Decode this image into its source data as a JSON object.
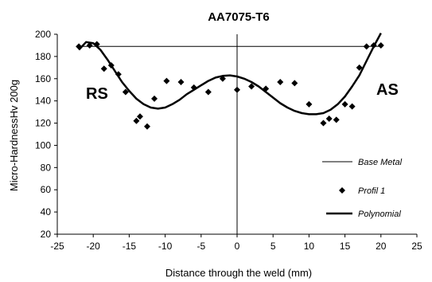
{
  "chart_data": {
    "type": "scatter",
    "title": "AA7075-T6",
    "xlabel": "Distance through the weld (mm)",
    "ylabel": "Micro-HardnessHv 200g",
    "xlim": [
      -25,
      25
    ],
    "ylim": [
      20,
      200
    ],
    "x_ticks": [
      -25,
      -20,
      -15,
      -10,
      -5,
      0,
      5,
      10,
      15,
      20,
      25
    ],
    "y_ticks": [
      20,
      40,
      60,
      80,
      100,
      120,
      140,
      160,
      180,
      200
    ],
    "annotations": [
      "RS",
      "AS"
    ],
    "legend_position": "right",
    "series": [
      {
        "name": "Base Metal",
        "kind": "line",
        "style": "thin",
        "x": [
          -22,
          20
        ],
        "y": [
          189,
          189
        ]
      },
      {
        "name": "Profil 1",
        "kind": "scatter",
        "marker": "diamond",
        "x": [
          -22,
          -20.5,
          -19.5,
          -18.5,
          -17.5,
          -16.5,
          -15.5,
          -14,
          -13.5,
          -12.5,
          -11.5,
          -9.8,
          -7.8,
          -6,
          -4,
          -2,
          0,
          2,
          4,
          6,
          8,
          10,
          12,
          12.8,
          13.8,
          15,
          16,
          17,
          18,
          19,
          20
        ],
        "y": [
          189,
          190,
          191,
          169,
          172,
          164,
          148,
          122,
          126,
          117,
          142,
          158,
          157,
          152,
          148,
          160,
          150,
          153,
          151,
          157,
          156,
          137,
          120,
          124,
          123,
          137,
          135,
          170,
          189,
          190,
          190
        ]
      },
      {
        "name": "Polynomial",
        "kind": "line",
        "style": "thick",
        "x": [
          -22,
          -21,
          -20,
          -19,
          -18,
          -17,
          -16,
          -15,
          -14,
          -13,
          -12,
          -11,
          -10,
          -9,
          -8,
          -7,
          -6,
          -5,
          -4,
          -3,
          -2,
          -1,
          0,
          1,
          2,
          3,
          4,
          5,
          6,
          7,
          8,
          9,
          10,
          11,
          12,
          13,
          14,
          15,
          16,
          17,
          18,
          19,
          20
        ],
        "y": [
          186,
          193,
          192,
          186,
          177,
          167,
          157,
          149,
          142,
          137,
          134,
          133,
          134,
          137,
          141,
          146,
          150,
          154,
          158,
          161,
          162.5,
          163,
          162,
          160,
          157,
          153,
          148,
          143,
          138,
          134,
          131,
          129,
          128,
          128,
          129,
          132,
          137,
          144,
          153,
          163,
          176,
          189,
          203
        ]
      }
    ]
  }
}
